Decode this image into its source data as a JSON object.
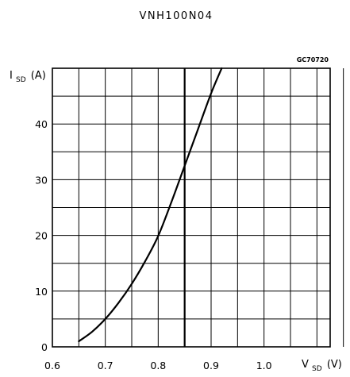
{
  "chart_data": {
    "type": "line",
    "title": "VNH100N04",
    "figure_code": "GC70720",
    "xlabel_main": "V",
    "xlabel_sub": "SD",
    "xlabel_unit": "(V)",
    "ylabel_main": "I",
    "ylabel_sub": "SD",
    "ylabel_unit": "(A)",
    "xlim": [
      0.6,
      1.125
    ],
    "ylim": [
      0,
      50
    ],
    "x_ticks": [
      "0.6",
      "0.7",
      "0.8",
      "0.9",
      "1.0"
    ],
    "y_ticks": [
      "0",
      "10",
      "20",
      "30",
      "40"
    ],
    "grid": true,
    "reference_line_x": 0.85,
    "series": [
      {
        "x": [
          0.65,
          0.675,
          0.7,
          0.725,
          0.75,
          0.775,
          0.8,
          0.825,
          0.85,
          0.875,
          0.9,
          0.92
        ],
        "y": [
          1.0,
          2.7,
          5.0,
          7.9,
          11.3,
          15.3,
          19.9,
          26.0,
          32.5,
          39.0,
          45.5,
          50.0
        ]
      }
    ]
  }
}
